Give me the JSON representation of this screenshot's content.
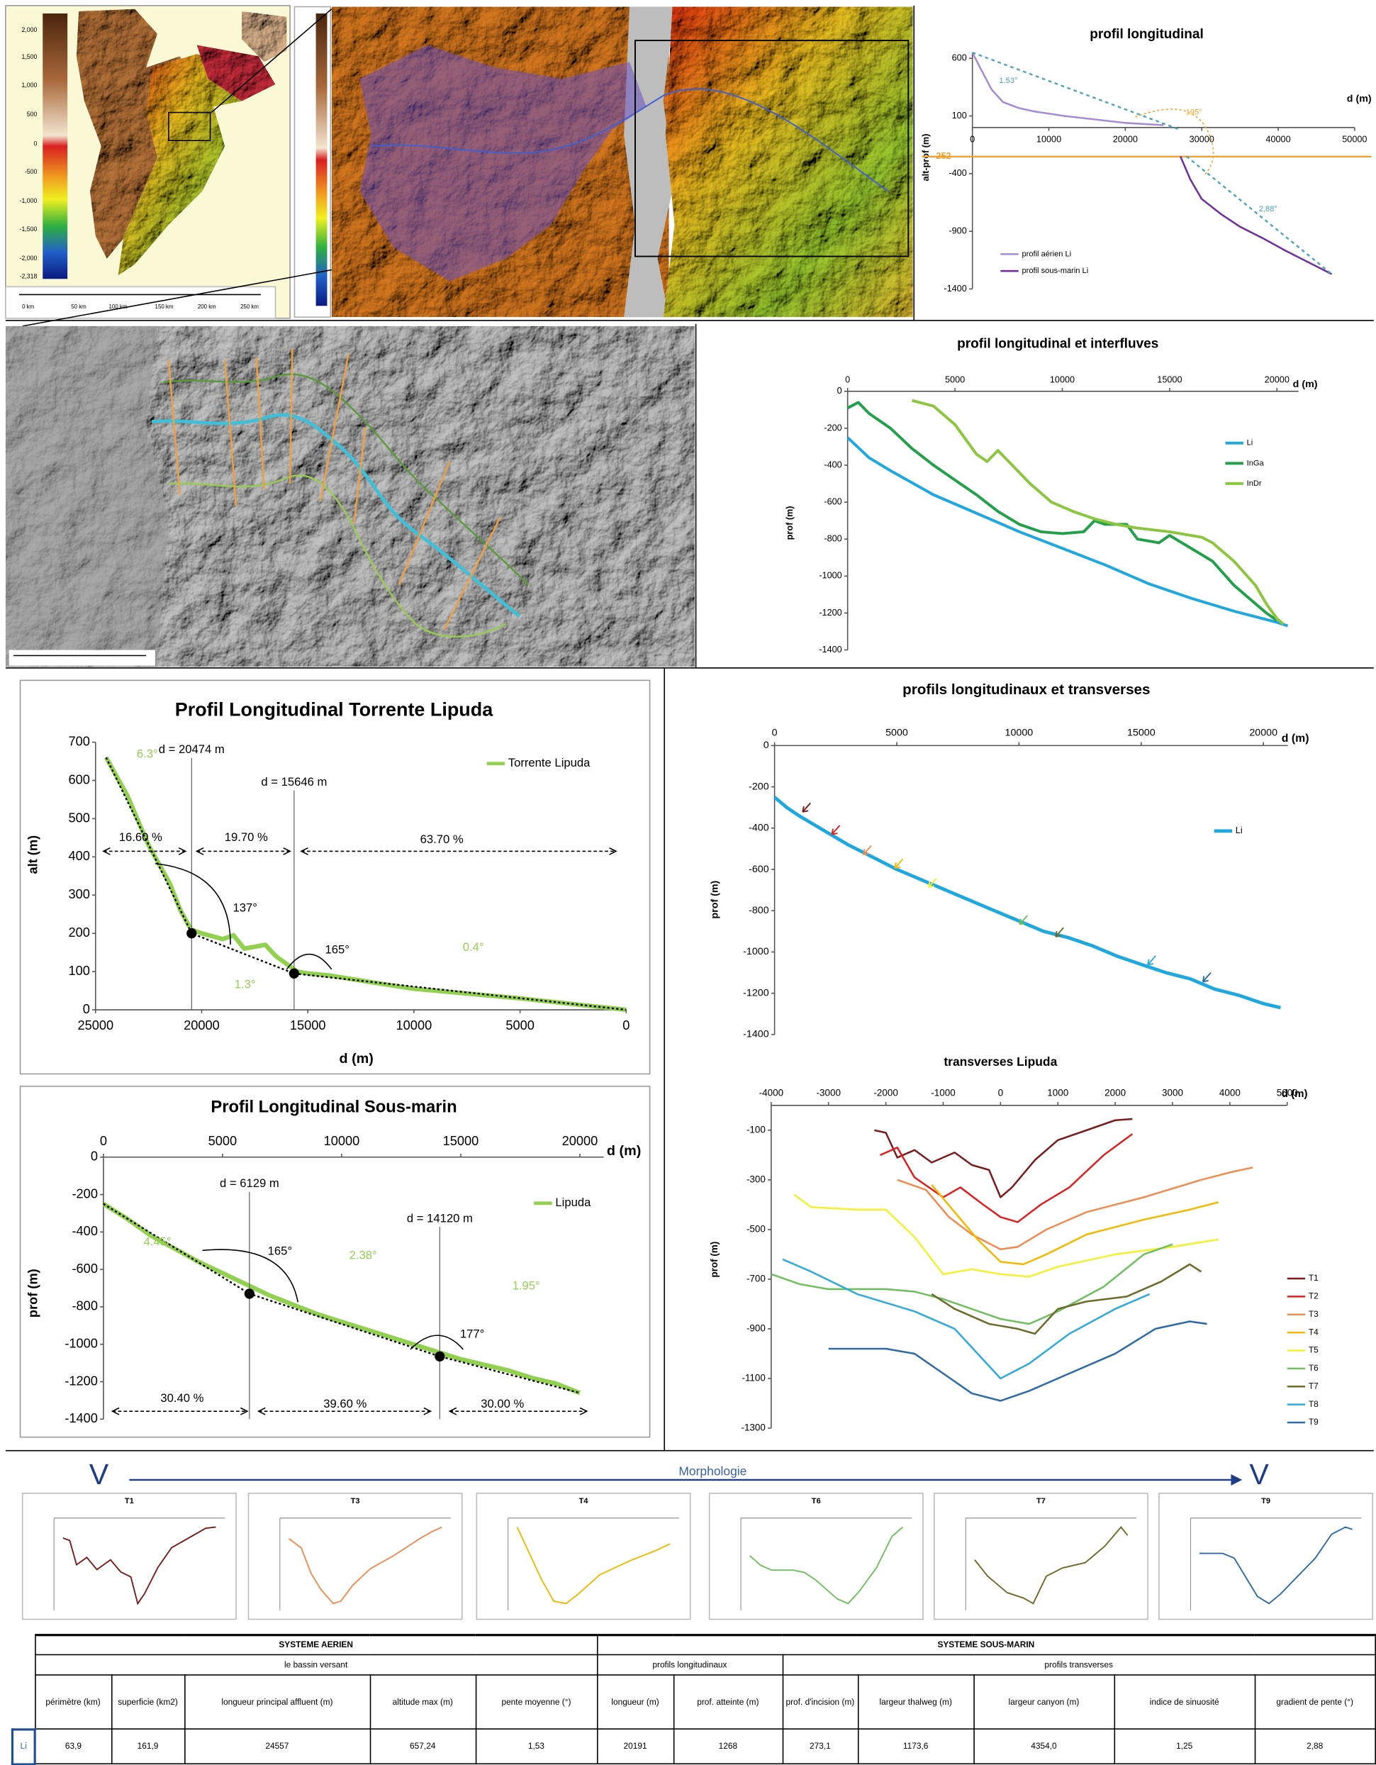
{
  "chart_data": [
    {
      "type": "line",
      "title": "profil longitudinal",
      "xlabel": "d (m)",
      "ylabel": "alt-prof (m)",
      "xlim": [
        0,
        50000
      ],
      "ylim": [
        -1400,
        650
      ],
      "xticks": [
        0,
        10000,
        20000,
        30000,
        40000,
        50000
      ],
      "yticks": [
        600,
        100,
        -400,
        -900,
        -1400
      ],
      "hline": -252,
      "hline_color": "#f0a030",
      "trend_color": "#4ba3b5",
      "series": [
        {
          "name": "profil aérien Li",
          "color": "#a58bd6",
          "x": [
            0,
            1000,
            2500,
            4000,
            6000,
            8000,
            12000,
            16000,
            20000,
            25000
          ],
          "values": [
            650,
            520,
            330,
            220,
            170,
            140,
            100,
            70,
            40,
            20
          ]
        },
        {
          "name": "profil sous-marin Li",
          "color": "#7030a0",
          "x": [
            27200,
            28500,
            30000,
            32500,
            35000,
            38000,
            41000,
            44000,
            47000
          ],
          "values": [
            -250,
            -450,
            -620,
            -750,
            -860,
            -960,
            -1070,
            -1170,
            -1270
          ]
        }
      ],
      "trends": [
        {
          "x": [
            0,
            27000
          ],
          "values": [
            650,
            -15
          ]
        },
        {
          "x": [
            28000,
            47000
          ],
          "values": [
            -250,
            -1270
          ]
        }
      ],
      "annotations": [
        {
          "text": "1.53°",
          "color": "#4ba3b5"
        },
        {
          "text": "195°",
          "color": "#f5a623"
        },
        {
          "text": "2,88°",
          "color": "#4ba3b5"
        }
      ]
    },
    {
      "type": "line",
      "title": "profil longitudinal et interfluves",
      "xlabel": "d (m)",
      "ylabel": "prof (m)",
      "xlim": [
        0,
        21000
      ],
      "ylim": [
        -1400,
        0
      ],
      "xticks": [
        0,
        5000,
        10000,
        15000,
        20000
      ],
      "yticks": [
        0,
        -200,
        -400,
        -600,
        -800,
        -1000,
        -1200,
        -1400
      ],
      "series": [
        {
          "name": "Li",
          "color": "#1ea8e0",
          "x": [
            0,
            1000,
            2000,
            4000,
            6000,
            8000,
            10000,
            12000,
            14000,
            16000,
            18000,
            20000,
            20500
          ],
          "values": [
            -250,
            -360,
            -430,
            -560,
            -660,
            -760,
            -850,
            -940,
            -1040,
            -1120,
            -1190,
            -1250,
            -1270
          ]
        },
        {
          "name": "InGa",
          "color": "#22a04a",
          "x": [
            0,
            500,
            1000,
            2000,
            3000,
            4000,
            5000,
            6000,
            7000,
            8000,
            9000,
            10000,
            11000,
            11500,
            12000,
            13000,
            13500,
            14500,
            15000,
            16000,
            17000,
            18000,
            19000,
            19500,
            20000
          ],
          "values": [
            -90,
            -60,
            -120,
            -200,
            -310,
            -400,
            -480,
            -560,
            -650,
            -720,
            -760,
            -770,
            -760,
            -700,
            -720,
            -720,
            -800,
            -820,
            -780,
            -850,
            -920,
            -1050,
            -1150,
            -1200,
            -1240
          ]
        },
        {
          "name": "InDr",
          "color": "#8cc63f",
          "x": [
            3000,
            4000,
            5000,
            6000,
            6500,
            7000,
            7500,
            8500,
            9500,
            10500,
            11500,
            12500,
            13500,
            15000,
            16500,
            17000,
            18000,
            19000,
            19500,
            20000,
            20300
          ],
          "values": [
            -50,
            -80,
            -180,
            -340,
            -380,
            -320,
            -380,
            -500,
            -600,
            -650,
            -690,
            -720,
            -740,
            -760,
            -790,
            -820,
            -920,
            -1050,
            -1150,
            -1230,
            -1260
          ]
        }
      ]
    },
    {
      "type": "line",
      "title": "Profil Longitudinal Torrente Lipuda",
      "xlabel": "d (m)",
      "ylabel": "alt (m)",
      "xlim": [
        25000,
        0
      ],
      "ylim": [
        0,
        700
      ],
      "xticks": [
        25000,
        20000,
        15000,
        10000,
        5000,
        0
      ],
      "yticks": [
        0,
        100,
        200,
        300,
        400,
        500,
        600,
        700
      ],
      "trend_color": "#000000",
      "series": [
        {
          "name": "Torrente Lipuda",
          "color": "#92d050",
          "x": [
            24500,
            23500,
            22500,
            21500,
            21000,
            20500,
            20000,
            19000,
            18500,
            18000,
            17500,
            17000,
            16500,
            16000,
            15500,
            15000,
            14000,
            12000,
            10000,
            8000,
            6000,
            5000,
            3000,
            0
          ],
          "values": [
            660,
            560,
            430,
            330,
            260,
            210,
            200,
            185,
            195,
            160,
            165,
            170,
            140,
            120,
            100,
            95,
            90,
            72,
            55,
            45,
            35,
            30,
            18,
            0
          ]
        }
      ],
      "trends": [
        {
          "x": [
            24500,
            20474,
            15646,
            0
          ],
          "values": [
            660,
            200,
            95,
            0
          ]
        }
      ],
      "markers": [
        {
          "label": "d = 20474 m",
          "x": 20474,
          "y": 200
        },
        {
          "label": "d = 15646 m",
          "x": 15646,
          "y": 95
        }
      ],
      "annotations": [
        {
          "text": "6.3°",
          "color": "#92d050"
        },
        {
          "text": "1.3°",
          "color": "#92d050"
        },
        {
          "text": "0.4°",
          "color": "#92d050"
        },
        {
          "text": "16.60 %"
        },
        {
          "text": "19.70 %"
        },
        {
          "text": "63.70 %"
        },
        {
          "text": "137°"
        },
        {
          "text": "165°"
        }
      ]
    },
    {
      "type": "line",
      "title": "Profil Longitudinal Sous-marin",
      "xlabel": "d (m)",
      "ylabel": "prof (m)",
      "xlim": [
        0,
        21000
      ],
      "ylim": [
        -1400,
        0
      ],
      "xticks": [
        0,
        5000,
        10000,
        15000,
        20000
      ],
      "yticks": [
        0,
        -200,
        -400,
        -600,
        -800,
        -1000,
        -1200,
        -1400
      ],
      "trend_color": "#000000",
      "series": [
        {
          "name": "Lipuda",
          "color": "#92d050",
          "x": [
            0,
            1000,
            2000,
            3000,
            4000,
            5000,
            6000,
            7000,
            8000,
            9000,
            10000,
            11000,
            12000,
            13000,
            14000,
            15000,
            16000,
            17000,
            18000,
            19000,
            20000
          ],
          "values": [
            -250,
            -330,
            -420,
            -490,
            -560,
            -620,
            -680,
            -740,
            -790,
            -840,
            -880,
            -920,
            -960,
            -1000,
            -1040,
            -1080,
            -1110,
            -1140,
            -1180,
            -1210,
            -1260
          ]
        }
      ],
      "trends": [
        {
          "x": [
            0,
            6129,
            14120,
            20000
          ],
          "values": [
            -250,
            -730,
            -1065,
            -1260
          ]
        }
      ],
      "markers": [
        {
          "label": "d = 6129 m",
          "x": 6129,
          "y": -730
        },
        {
          "label": "d = 14120 m",
          "x": 14120,
          "y": -1065
        }
      ],
      "annotations": [
        {
          "text": "4.45°",
          "color": "#92d050"
        },
        {
          "text": "2.38°",
          "color": "#92d050"
        },
        {
          "text": "1.95°",
          "color": "#92d050"
        },
        {
          "text": "30.40 %"
        },
        {
          "text": "39.60 %"
        },
        {
          "text": "30.00 %"
        },
        {
          "text": "165°"
        },
        {
          "text": "177°"
        }
      ]
    },
    {
      "type": "line",
      "title": "profils longitudinaux et transverses",
      "xlabel": "d (m)",
      "ylabel": "prof (m)",
      "xlim": [
        0,
        21000
      ],
      "ylim": [
        -1400,
        0
      ],
      "xticks": [
        0,
        5000,
        10000,
        15000,
        20000
      ],
      "yticks": [
        0,
        -200,
        -400,
        -600,
        -800,
        -1000,
        -1200,
        -1400
      ],
      "series": [
        {
          "name": "Li",
          "color": "#1ea8e0",
          "x": [
            0,
            500,
            1000,
            2000,
            3000,
            4000,
            5000,
            6000,
            7000,
            8000,
            9000,
            10000,
            11000,
            12000,
            13000,
            14000,
            15000,
            16000,
            17000,
            18000,
            19000,
            20000,
            20700
          ],
          "values": [
            -250,
            -300,
            -340,
            -410,
            -480,
            -540,
            -600,
            -650,
            -700,
            -750,
            -800,
            -850,
            -900,
            -930,
            -970,
            -1020,
            -1060,
            -1100,
            -1130,
            -1180,
            -1210,
            -1250,
            -1270
          ]
        }
      ]
    },
    {
      "type": "line",
      "title": "transverses Lipuda",
      "xlabel": "d (m)",
      "ylabel": "prof (m)",
      "xlim": [
        -4000,
        5000
      ],
      "ylim": [
        -1300,
        0
      ],
      "xticks": [
        -4000,
        -3000,
        -2000,
        -1000,
        0,
        1000,
        2000,
        3000,
        4000,
        5000
      ],
      "yticks": [
        -100,
        -300,
        -500,
        -700,
        -900,
        -1100,
        -1300
      ],
      "series": [
        {
          "name": "T1",
          "color": "#7b1c1c",
          "x": [
            -2200,
            -2000,
            -1800,
            -1500,
            -1200,
            -800,
            -500,
            -200,
            0,
            200,
            600,
            1000,
            1500,
            2000,
            2300
          ],
          "values": [
            -100,
            -110,
            -210,
            -180,
            -230,
            -190,
            -240,
            -260,
            -370,
            -330,
            -220,
            -140,
            -100,
            -60,
            -55
          ]
        },
        {
          "name": "T2",
          "color": "#e02020",
          "x": [
            -2100,
            -1800,
            -1500,
            -1000,
            -700,
            -300,
            0,
            300,
            700,
            1200,
            1800,
            2300
          ],
          "values": [
            -200,
            -170,
            -290,
            -370,
            -330,
            -400,
            -450,
            -470,
            -400,
            -330,
            -200,
            -115
          ]
        },
        {
          "name": "T3",
          "color": "#f08c50",
          "x": [
            -1800,
            -1300,
            -900,
            -500,
            0,
            300,
            800,
            1500,
            2500,
            3500,
            4000,
            4400
          ],
          "values": [
            -300,
            -340,
            -450,
            -520,
            -580,
            -570,
            -500,
            -430,
            -370,
            -300,
            -270,
            -250
          ]
        },
        {
          "name": "T4",
          "color": "#f5b800",
          "x": [
            -1200,
            -800,
            -400,
            0,
            400,
            800,
            1500,
            2500,
            3300,
            3800
          ],
          "values": [
            -320,
            -430,
            -540,
            -630,
            -640,
            -600,
            -520,
            -460,
            -420,
            -390
          ]
        },
        {
          "name": "T5",
          "color": "#f2f230",
          "x": [
            -3600,
            -3300,
            -2500,
            -2000,
            -1500,
            -1000,
            -500,
            0,
            500,
            1000,
            2000,
            3000,
            3800
          ],
          "values": [
            -360,
            -410,
            -420,
            -420,
            -530,
            -680,
            -660,
            -680,
            -690,
            -650,
            -600,
            -570,
            -540
          ]
        },
        {
          "name": "T6",
          "color": "#6fbf5f",
          "x": [
            -4000,
            -3500,
            -3000,
            -2000,
            -1500,
            -1000,
            0,
            500,
            1000,
            1800,
            2500,
            3000
          ],
          "values": [
            -680,
            -720,
            -740,
            -740,
            -750,
            -780,
            -860,
            -880,
            -830,
            -730,
            -600,
            -560
          ]
        },
        {
          "name": "T7",
          "color": "#6b6b2a",
          "x": [
            -1200,
            -800,
            -200,
            300,
            600,
            1000,
            1500,
            2200,
            2800,
            3300,
            3500
          ],
          "values": [
            -760,
            -820,
            -880,
            -900,
            -920,
            -820,
            -790,
            -770,
            -710,
            -640,
            -670
          ]
        },
        {
          "name": "T8",
          "color": "#2eaadc",
          "x": [
            -3800,
            -3300,
            -2500,
            -1500,
            -800,
            -200,
            0,
            500,
            1200,
            2000,
            2600
          ],
          "values": [
            -620,
            -670,
            -760,
            -830,
            -900,
            -1050,
            -1100,
            -1040,
            -920,
            -820,
            -760
          ]
        },
        {
          "name": "T9",
          "color": "#2e6aa8",
          "x": [
            -3000,
            -2000,
            -1500,
            -1000,
            -500,
            0,
            500,
            1200,
            2000,
            2700,
            3300,
            3600
          ],
          "values": [
            -980,
            -980,
            -1000,
            -1080,
            -1160,
            -1190,
            -1150,
            -1080,
            -1000,
            -900,
            -870,
            -880
          ]
        }
      ]
    }
  ],
  "maps": {
    "colorbar_labels": [
      "2,000",
      "1,500",
      "1,000",
      "500",
      "0",
      "-500",
      "-1,000",
      "-1,500",
      "-2,000",
      "-2,318"
    ],
    "scale_labels": [
      "0 km",
      "50 km",
      "100 km",
      "150 km",
      "200 km",
      "250 km"
    ]
  },
  "morphology": {
    "title": "Morphologie",
    "symbol": "V",
    "thumbnails": [
      "T1",
      "T3",
      "T4",
      "T6",
      "T7",
      "T9"
    ]
  },
  "table": {
    "groups": [
      "SYSTEME AERIEN",
      "SYSTEME SOUS-MARIN"
    ],
    "subgroups": [
      "le bassin versant",
      "profils longitudinaux",
      "profils transverses"
    ],
    "columns": [
      "périmètre (km)",
      "superficie (km2)",
      "longueur principal affluent (m)",
      "altitude max (m)",
      "pente moyenne (°)",
      "longueur (m)",
      "prof. atteinte (m)",
      "prof. d'incision (m)",
      "largeur thalweg (m)",
      "largeur canyon (m)",
      "indice de sinuosité",
      "gradient de pente (°)"
    ],
    "rows": [
      [
        "Li",
        "63,9",
        "161,9",
        "24557",
        "657,24",
        "1,53",
        "20191",
        "1268",
        "273,1",
        "1173,6",
        "4354,0",
        "1,25",
        "2,88"
      ]
    ]
  }
}
